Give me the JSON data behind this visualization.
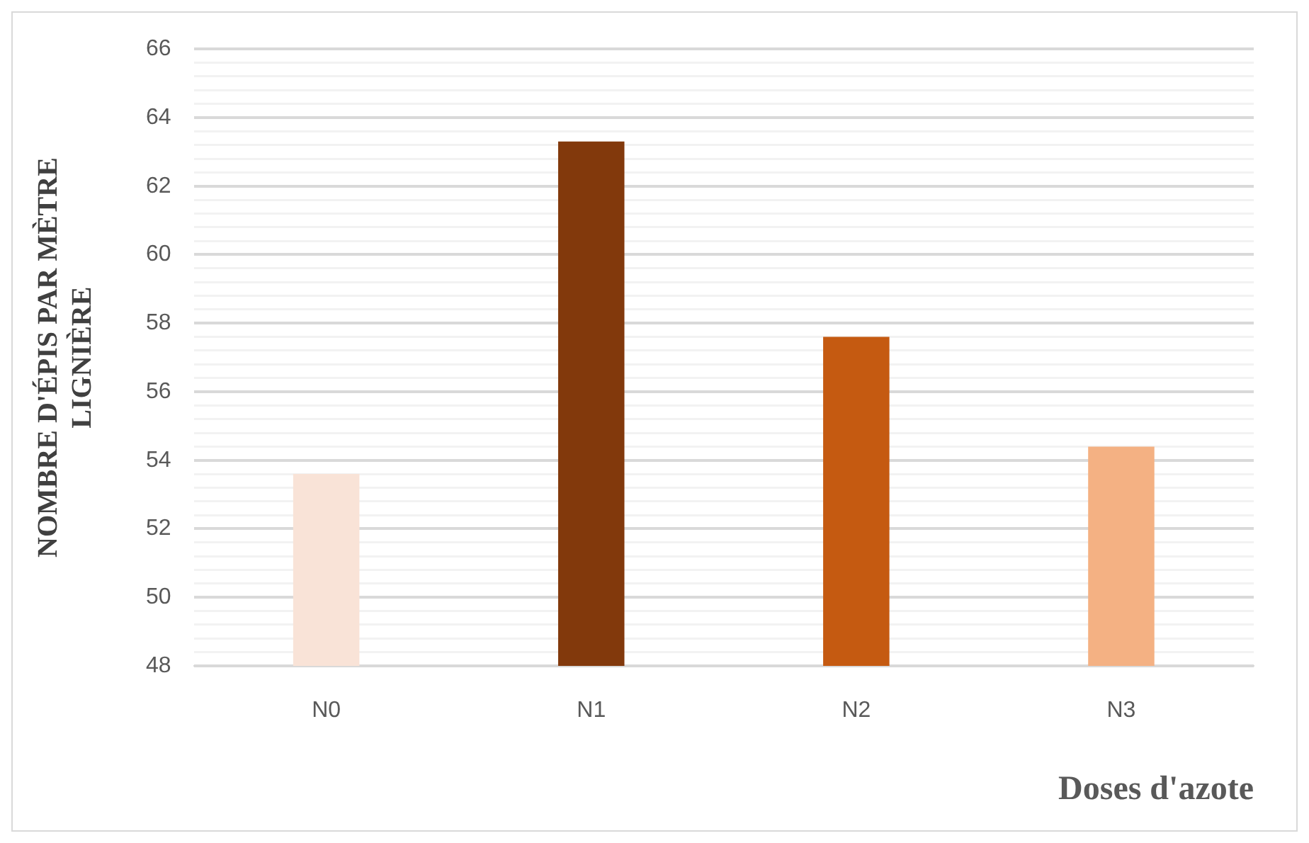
{
  "chart_data": {
    "type": "bar",
    "xlabel": "Doses d'azote",
    "ylabel": "NOMBRE D'ÉPIS PAR MÈTRE LIGNIÈRE",
    "categories": [
      "N0",
      "N1",
      "N2",
      "N3"
    ],
    "values": [
      53.6,
      63.3,
      57.6,
      54.4
    ],
    "colors": [
      "#f9e3d7",
      "#82390c",
      "#c55a11",
      "#f4b183"
    ],
    "ylim": [
      48,
      66
    ],
    "yticks": [
      48,
      {
        "value": 48.4,
        "label": null
      },
      {
        "value": 48.8,
        "label": null
      },
      {
        "value": 49.2,
        "label": null
      },
      {
        "value": 49.6,
        "label": null
      },
      50,
      {
        "value": 50.4,
        "label": null
      },
      {
        "value": 50.8,
        "label": null
      },
      {
        "value": 51.2,
        "label": null
      },
      {
        "value": 51.6,
        "label": null
      },
      52,
      {
        "value": 52.4,
        "label": null
      },
      {
        "value": 52.8,
        "label": null
      },
      {
        "value": 53.2,
        "label": null
      },
      {
        "value": 53.6,
        "label": null
      },
      54,
      {
        "value": 54.4,
        "label": null
      },
      {
        "value": 54.8,
        "label": null
      },
      {
        "value": 55.2,
        "label": null
      },
      {
        "value": 55.6,
        "label": null
      },
      56,
      {
        "value": 56.4,
        "label": null
      },
      {
        "value": 56.8,
        "label": null
      },
      {
        "value": 57.2,
        "label": null
      },
      {
        "value": 57.6,
        "label": null
      },
      58,
      {
        "value": 58.4,
        "label": null
      },
      {
        "value": 58.8,
        "label": null
      },
      {
        "value": 59.2,
        "label": null
      },
      {
        "value": 59.6,
        "label": null
      },
      60,
      {
        "value": 60.4,
        "label": null
      },
      {
        "value": 60.8,
        "label": null
      },
      {
        "value": 61.2,
        "label": null
      },
      {
        "value": 61.6,
        "label": null
      },
      62,
      {
        "value": 62.4,
        "label": null
      },
      {
        "value": 62.8,
        "label": null
      },
      {
        "value": 63.2,
        "label": null
      },
      {
        "value": 63.6,
        "label": null
      },
      64,
      {
        "value": 64.4,
        "label": null
      },
      {
        "value": 64.8,
        "label": null
      },
      {
        "value": 65.2,
        "label": null
      },
      {
        "value": 65.6,
        "label": null
      },
      66
    ],
    "grid": "y",
    "legend": false
  }
}
